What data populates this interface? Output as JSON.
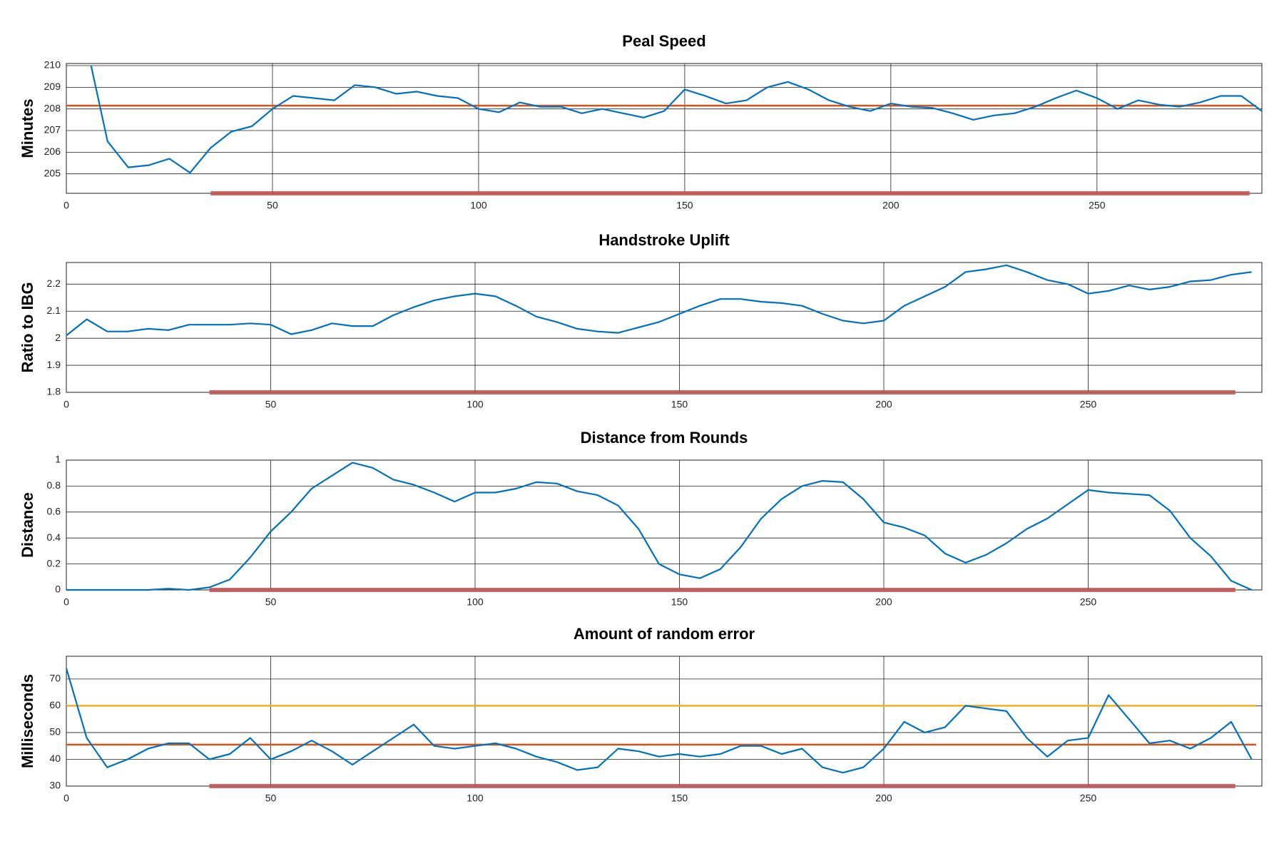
{
  "chart_data": [
    {
      "type": "line",
      "title": "Peal Speed",
      "ylabel": "Minutes",
      "x": [
        6,
        10,
        15,
        20,
        25,
        30,
        35,
        40,
        45,
        50,
        55,
        60,
        65,
        70,
        75,
        80,
        85,
        90,
        95,
        100,
        105,
        110,
        115,
        120,
        125,
        130,
        135,
        140,
        145,
        150,
        155,
        160,
        165,
        170,
        175,
        180,
        185,
        190,
        195,
        200,
        205,
        210,
        215,
        220,
        225,
        230,
        235,
        240,
        245,
        250,
        255,
        260,
        265,
        270,
        275,
        280,
        285,
        290
      ],
      "values": [
        210,
        206.5,
        205.3,
        205.4,
        205.7,
        205.05,
        206.2,
        206.95,
        207.2,
        208.0,
        208.6,
        208.5,
        208.4,
        209.1,
        209.0,
        208.7,
        208.8,
        208.6,
        208.5,
        208.0,
        207.85,
        208.3,
        208.1,
        208.1,
        207.8,
        208.0,
        207.8,
        207.6,
        207.9,
        208.9,
        208.6,
        208.25,
        208.4,
        209.0,
        209.25,
        208.9,
        208.4,
        208.1,
        207.9,
        208.25,
        208.1,
        208.05,
        207.8,
        207.5,
        207.7,
        207.8,
        208.1,
        208.5,
        208.85,
        208.5,
        208.0,
        208.4,
        208.2,
        208.1,
        208.3,
        208.6,
        208.6,
        207.9
      ],
      "color": "#0072bd",
      "xlim": [
        0,
        290
      ],
      "xticks": [
        0,
        50,
        100,
        150,
        200,
        250
      ],
      "ylim": [
        204.1,
        210.1
      ],
      "yticks": [
        205,
        206,
        207,
        208,
        209,
        210
      ],
      "hlines": [
        {
          "value": 208.15,
          "color": "#d95319"
        }
      ],
      "highlight": [
        35,
        287
      ],
      "highlight_color": "#c0504d",
      "grid": true
    },
    {
      "type": "line",
      "title": "Handstroke Uplift",
      "ylabel": "Ratio to IBG",
      "x": [
        0,
        5,
        10,
        15,
        20,
        25,
        30,
        35,
        40,
        45,
        50,
        55,
        60,
        65,
        70,
        75,
        80,
        85,
        90,
        95,
        100,
        105,
        110,
        115,
        120,
        125,
        130,
        135,
        140,
        145,
        150,
        155,
        160,
        165,
        170,
        175,
        180,
        185,
        190,
        195,
        200,
        205,
        210,
        215,
        220,
        225,
        230,
        235,
        240,
        245,
        250,
        255,
        260,
        265,
        270,
        275,
        280,
        285,
        290
      ],
      "values": [
        2.01,
        2.07,
        2.025,
        2.025,
        2.035,
        2.03,
        2.05,
        2.05,
        2.05,
        2.055,
        2.05,
        2.015,
        2.03,
        2.055,
        2.045,
        2.045,
        2.085,
        2.115,
        2.14,
        2.155,
        2.165,
        2.155,
        2.12,
        2.08,
        2.06,
        2.035,
        2.025,
        2.02,
        2.04,
        2.06,
        2.09,
        2.12,
        2.145,
        2.145,
        2.135,
        2.13,
        2.12,
        2.09,
        2.065,
        2.055,
        2.065,
        2.12,
        2.155,
        2.19,
        2.245,
        2.255,
        2.27,
        2.245,
        2.215,
        2.2,
        2.165,
        2.175,
        2.195,
        2.18,
        2.19,
        2.21,
        2.215,
        2.235,
        2.245
      ],
      "color": "#0072bd",
      "xlim": [
        0,
        292.5
      ],
      "xticks": [
        0,
        50,
        100,
        150,
        200,
        250
      ],
      "ylim": [
        1.8,
        2.28
      ],
      "yticks": [
        1.8,
        1.9,
        2,
        2.1,
        2.2
      ],
      "hlines": [],
      "highlight": [
        35,
        286
      ],
      "highlight_color": "#c0504d",
      "grid": true
    },
    {
      "type": "line",
      "title": "Distance from Rounds",
      "ylabel": "Distance",
      "x": [
        0,
        5,
        10,
        15,
        20,
        25,
        30,
        35,
        40,
        45,
        50,
        55,
        60,
        65,
        70,
        75,
        80,
        85,
        90,
        95,
        100,
        105,
        110,
        115,
        120,
        125,
        130,
        135,
        140,
        145,
        150,
        155,
        160,
        165,
        170,
        175,
        180,
        185,
        190,
        195,
        200,
        205,
        210,
        215,
        220,
        225,
        230,
        235,
        240,
        245,
        250,
        255,
        260,
        265,
        270,
        275,
        280,
        285,
        290
      ],
      "values": [
        0,
        0,
        0,
        0,
        0,
        0.01,
        0,
        0.02,
        0.08,
        0.25,
        0.45,
        0.6,
        0.78,
        0.88,
        0.98,
        0.94,
        0.85,
        0.81,
        0.75,
        0.68,
        0.75,
        0.75,
        0.78,
        0.83,
        0.82,
        0.76,
        0.73,
        0.65,
        0.47,
        0.2,
        0.12,
        0.09,
        0.16,
        0.33,
        0.55,
        0.7,
        0.8,
        0.84,
        0.83,
        0.7,
        0.52,
        0.48,
        0.42,
        0.28,
        0.21,
        0.27,
        0.36,
        0.47,
        0.55,
        0.66,
        0.77,
        0.75,
        0.74,
        0.73,
        0.61,
        0.4,
        0.26,
        0.07,
        0
      ],
      "color": "#0072bd",
      "xlim": [
        0,
        292.5
      ],
      "xticks": [
        0,
        50,
        100,
        150,
        200,
        250
      ],
      "ylim": [
        0,
        1
      ],
      "yticks": [
        0,
        0.2,
        0.4,
        0.6,
        0.8,
        1
      ],
      "hlines": [],
      "highlight": [
        35,
        286
      ],
      "highlight_color": "#c0504d",
      "grid": true
    },
    {
      "type": "line",
      "title": "Amount of random error",
      "ylabel": "Milliseconds",
      "x": [
        0,
        5,
        10,
        15,
        20,
        25,
        30,
        35,
        40,
        45,
        50,
        55,
        60,
        65,
        70,
        75,
        80,
        85,
        90,
        95,
        100,
        105,
        110,
        115,
        120,
        125,
        130,
        135,
        140,
        145,
        150,
        155,
        160,
        165,
        170,
        175,
        180,
        185,
        190,
        195,
        200,
        205,
        210,
        215,
        220,
        225,
        230,
        235,
        240,
        245,
        250,
        255,
        260,
        265,
        270,
        275,
        280,
        285,
        290
      ],
      "values": [
        74,
        48,
        37,
        40,
        44,
        46,
        46,
        40,
        42,
        48,
        40,
        43,
        47,
        43,
        38,
        43,
        48,
        53,
        45,
        44,
        45,
        46,
        44,
        41,
        39,
        36,
        37,
        44,
        43,
        41,
        42,
        41,
        42,
        45,
        45,
        42,
        44,
        37,
        35,
        37,
        44,
        54,
        50,
        52,
        60,
        59,
        58,
        48,
        41,
        47,
        48,
        64,
        55,
        46,
        47,
        44,
        48,
        54,
        40
      ],
      "color": "#0072bd",
      "xlim": [
        0,
        292.5
      ],
      "xticks": [
        0,
        50,
        100,
        150,
        200,
        250
      ],
      "ylim": [
        30,
        78.5
      ],
      "yticks": [
        30,
        40,
        50,
        60,
        70
      ],
      "hlines": [
        {
          "value": 60,
          "color": "#edb120"
        },
        {
          "value": 45.5,
          "color": "#d95319"
        }
      ],
      "highlight": [
        35,
        286
      ],
      "highlight_color": "#c0504d",
      "grid": true
    }
  ]
}
